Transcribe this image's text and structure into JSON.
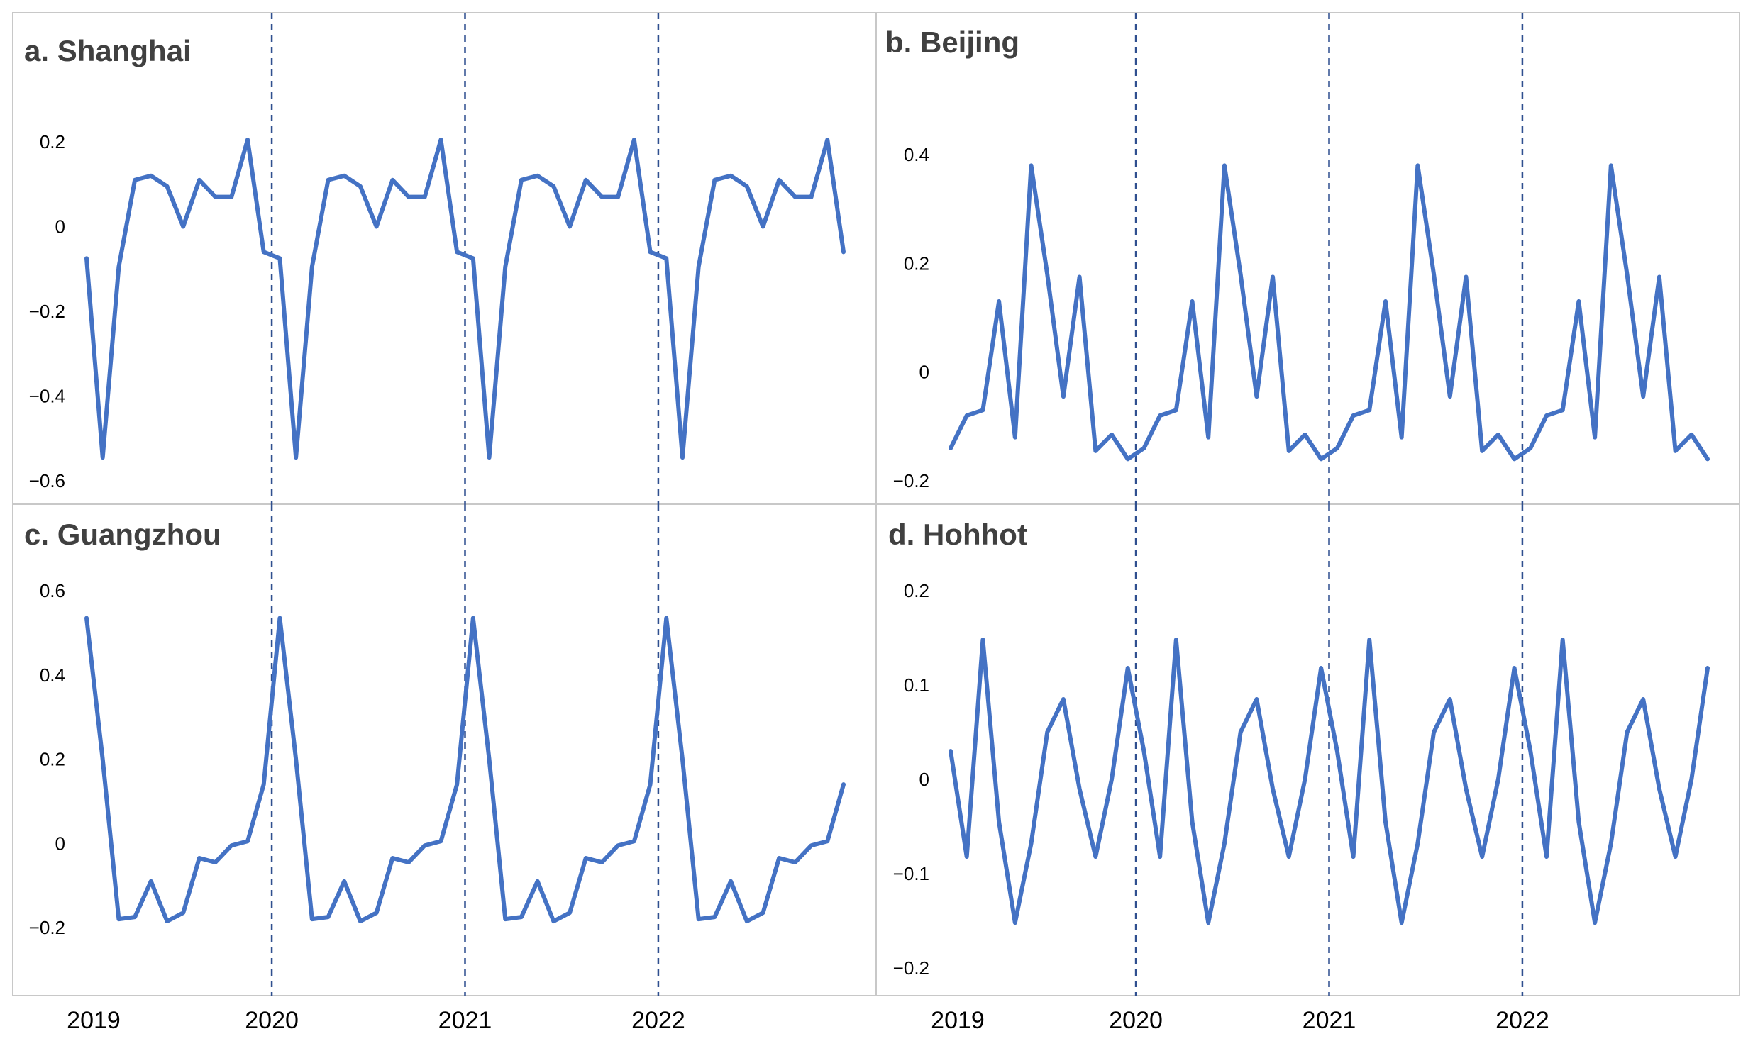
{
  "chart_data": {
    "type": "line",
    "panels": [
      {
        "id": "a",
        "title": "a. Shanghai",
        "ylim": [
          -0.62,
          0.33
        ],
        "yticks": [
          0.2,
          0,
          -0.2,
          -0.4,
          -0.6
        ],
        "ytick_labels": [
          "0.2",
          "0",
          "−0.2",
          "−0.4",
          "−0.6"
        ],
        "values": [
          -0.075,
          -0.545,
          -0.095,
          0.11,
          0.12,
          0.095,
          0.0,
          0.11,
          0.07,
          0.07,
          0.205,
          -0.06,
          -0.075,
          -0.545,
          -0.095,
          0.11,
          0.12,
          0.095,
          0.0,
          0.11,
          0.07,
          0.07,
          0.205,
          -0.06,
          -0.075,
          -0.545,
          -0.095,
          0.11,
          0.12,
          0.095,
          0.0,
          0.11,
          0.07,
          0.07,
          0.205,
          -0.06,
          -0.075,
          -0.545,
          -0.095,
          0.11,
          0.12,
          0.095,
          0.0,
          0.11,
          0.07,
          0.07,
          0.205,
          -0.06
        ]
      },
      {
        "id": "b",
        "title": "b. Beijing",
        "ylim": [
          -0.225,
          0.55
        ],
        "yticks": [
          0.4,
          0.2,
          0,
          -0.2
        ],
        "ytick_labels": [
          "0.4",
          "0.2",
          "0",
          "−0.2"
        ],
        "values": [
          -0.14,
          -0.08,
          -0.07,
          0.13,
          -0.12,
          0.38,
          0.18,
          -0.045,
          0.175,
          -0.145,
          -0.115,
          -0.16,
          -0.14,
          -0.08,
          -0.07,
          0.13,
          -0.12,
          0.38,
          0.18,
          -0.045,
          0.175,
          -0.145,
          -0.115,
          -0.16,
          -0.14,
          -0.08,
          -0.07,
          0.13,
          -0.12,
          0.38,
          0.18,
          -0.045,
          0.175,
          -0.145,
          -0.115,
          -0.16,
          -0.14,
          -0.08,
          -0.07,
          0.13,
          -0.12,
          0.38,
          0.18,
          -0.045,
          0.175,
          -0.145,
          -0.115,
          -0.16
        ]
      },
      {
        "id": "c",
        "title": "c. Guangzhou",
        "ylim": [
          -0.3,
          0.88
        ],
        "yticks": [
          0.6,
          0.4,
          0.2,
          0,
          -0.2
        ],
        "ytick_labels": [
          "0.6",
          "0.4",
          "0.2",
          "0",
          "−0.2"
        ],
        "values": [
          0.535,
          0.2,
          -0.18,
          -0.175,
          -0.09,
          -0.185,
          -0.165,
          -0.035,
          -0.045,
          -0.005,
          0.005,
          0.14,
          0.535,
          0.2,
          -0.18,
          -0.175,
          -0.09,
          -0.185,
          -0.165,
          -0.035,
          -0.045,
          -0.005,
          0.005,
          0.14,
          0.535,
          0.2,
          -0.18,
          -0.175,
          -0.09,
          -0.185,
          -0.165,
          -0.035,
          -0.045,
          -0.005,
          0.005,
          0.14,
          0.535,
          0.2,
          -0.18,
          -0.175,
          -0.09,
          -0.185,
          -0.165,
          -0.035,
          -0.045,
          -0.005,
          0.005,
          0.14
        ]
      },
      {
        "id": "d",
        "title": "d. Hohhot",
        "ylim": [
          -0.225,
          0.385
        ],
        "yticks": [
          0.2,
          0.1,
          0,
          -0.1,
          -0.2
        ],
        "ytick_labels": [
          "0.2",
          "0.1",
          "0",
          "−0.1",
          "−0.2"
        ],
        "values": [
          0.03,
          -0.082,
          0.148,
          -0.045,
          -0.152,
          -0.068,
          0.05,
          0.085,
          -0.01,
          -0.082,
          0.0,
          0.118,
          0.03,
          -0.082,
          0.148,
          -0.045,
          -0.152,
          -0.068,
          0.05,
          0.085,
          -0.01,
          -0.082,
          0.0,
          0.118,
          0.03,
          -0.082,
          0.148,
          -0.045,
          -0.152,
          -0.068,
          0.05,
          0.085,
          -0.01,
          -0.082,
          0.0,
          0.118,
          0.03,
          -0.082,
          0.148,
          -0.045,
          -0.152,
          -0.068,
          0.05,
          0.085,
          -0.01,
          -0.082,
          0.0,
          0.118
        ]
      }
    ],
    "x": {
      "start_year": 2019,
      "points_per_year": 12,
      "tick_labels": [
        "2019",
        "2020",
        "2021",
        "2022"
      ],
      "year_boundaries": [
        "2020",
        "2021",
        "2022"
      ]
    },
    "grid": false,
    "legend": "none",
    "line_color": "#4472C4",
    "divider_color": "#2F4F8F"
  }
}
